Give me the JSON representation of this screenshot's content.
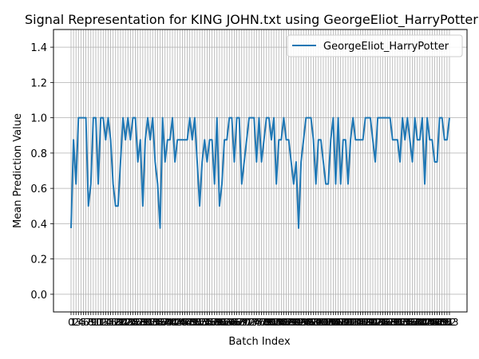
{
  "chart_data": {
    "type": "line",
    "title": "Signal Representation for KING JOHN.txt using GeorgeEliot_HarryPotter",
    "xlabel": "Batch Index",
    "ylabel": "Mean Prediction Value",
    "ylim": [
      -0.1,
      1.5
    ],
    "yticks": [
      "0.0",
      "0.2",
      "0.4",
      "0.6",
      "0.8",
      "1.0",
      "1.2",
      "1.4"
    ],
    "xticks": [
      "0",
      "1",
      "2",
      "3",
      "4",
      "5",
      "6",
      "7",
      "8",
      "9",
      "10",
      "11",
      "12",
      "13",
      "14",
      "15",
      "16",
      "17",
      "18",
      "19",
      "20",
      "21",
      "22",
      "23",
      "24",
      "25",
      "26",
      "27",
      "28",
      "29",
      "30",
      "31",
      "32",
      "33",
      "34",
      "35",
      "36",
      "37",
      "38",
      "39",
      "40",
      "41",
      "42",
      "43",
      "44",
      "45",
      "46",
      "47",
      "48",
      "49",
      "50",
      "51",
      "52",
      "53",
      "54",
      "55",
      "56",
      "57",
      "58",
      "59",
      "60",
      "61",
      "62",
      "63",
      "64",
      "65",
      "66",
      "67",
      "68",
      "69",
      "70",
      "71",
      "72",
      "73",
      "74",
      "75",
      "76",
      "77",
      "78",
      "79",
      "80",
      "81",
      "82",
      "83",
      "84",
      "85",
      "86",
      "87",
      "88",
      "89",
      "90",
      "91",
      "92",
      "93",
      "94",
      "95",
      "96",
      "97",
      "98",
      "99",
      "100",
      "101",
      "102",
      "103",
      "104",
      "105",
      "106",
      "107",
      "108",
      "109",
      "110",
      "111",
      "112",
      "113",
      "114",
      "115",
      "116",
      "117",
      "118",
      "119",
      "120",
      "121",
      "122",
      "123",
      "124",
      "125",
      "126",
      "127",
      "128",
      "129",
      "130",
      "131",
      "132",
      "133",
      "134",
      "135",
      "136",
      "137",
      "138",
      "139",
      "140",
      "141",
      "142",
      "143",
      "144",
      "145",
      "146",
      "147",
      "148",
      "149",
      "150",
      "151",
      "152",
      "153"
    ],
    "grid": true,
    "legend_position": "top-right",
    "series": [
      {
        "name": "GeorgeEliot_HarryPotter",
        "color": "#1f77b4",
        "values": [
          0.375,
          0.875,
          0.625,
          1.0,
          1.0,
          1.0,
          1.0,
          0.5,
          0.625,
          1.0,
          1.0,
          0.625,
          1.0,
          1.0,
          0.875,
          1.0,
          0.875,
          0.625,
          0.5,
          0.5,
          0.75,
          1.0,
          0.875,
          1.0,
          0.875,
          1.0,
          1.0,
          0.75,
          0.875,
          0.5,
          0.875,
          1.0,
          0.875,
          1.0,
          0.75,
          0.625,
          0.375,
          1.0,
          0.75,
          0.875,
          0.875,
          1.0,
          0.75,
          0.875,
          0.875,
          0.875,
          0.875,
          0.875,
          1.0,
          0.875,
          1.0,
          0.75,
          0.5,
          0.75,
          0.875,
          0.75,
          0.875,
          0.875,
          0.625,
          1.0,
          0.5,
          0.625,
          0.875,
          0.875,
          1.0,
          1.0,
          0.75,
          1.0,
          1.0,
          0.625,
          0.75,
          0.875,
          1.0,
          1.0,
          1.0,
          0.75,
          1.0,
          0.75,
          0.875,
          1.0,
          1.0,
          0.875,
          1.0,
          0.625,
          0.875,
          0.875,
          1.0,
          0.875,
          0.875,
          0.75,
          0.625,
          0.75,
          0.375,
          0.75,
          0.875,
          1.0,
          1.0,
          1.0,
          0.875,
          0.625,
          0.875,
          0.875,
          0.75,
          0.625,
          0.625,
          0.875,
          1.0,
          0.625,
          1.0,
          0.625,
          0.875,
          0.875,
          0.625,
          0.875,
          1.0,
          0.875,
          0.875,
          0.875,
          0.875,
          1.0,
          1.0,
          1.0,
          0.875,
          0.75,
          1.0,
          1.0,
          1.0,
          1.0,
          1.0,
          1.0,
          0.875,
          0.875,
          0.875,
          0.75,
          1.0,
          0.875,
          1.0,
          0.875,
          0.75,
          1.0,
          0.875,
          0.875,
          1.0,
          0.625,
          1.0,
          0.875,
          0.875,
          0.75,
          0.75,
          1.0,
          1.0,
          0.875,
          0.875,
          1.0
        ]
      }
    ]
  }
}
